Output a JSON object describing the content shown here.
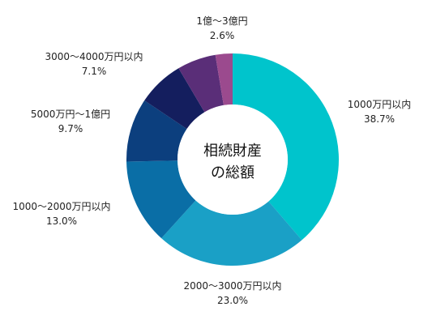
{
  "chart_data": {
    "type": "pie",
    "variant": "donut",
    "center_label": [
      "相続財産",
      "の総額"
    ],
    "slices": [
      {
        "label": "1000万円以内",
        "value": 38.7,
        "value_label": "38.7%",
        "color": "#00C4CC"
      },
      {
        "label": "2000〜3000万円以内",
        "value": 23.0,
        "value_label": "23.0%",
        "color": "#1AA0C6"
      },
      {
        "label": "1000〜2000万円以内",
        "value": 13.0,
        "value_label": "13.0%",
        "color": "#0A6EA6"
      },
      {
        "label": "5000万円〜1億円",
        "value": 9.7,
        "value_label": "9.7%",
        "color": "#0C3F7E"
      },
      {
        "label": "3000〜4000万円以内",
        "value": 7.1,
        "value_label": "7.1%",
        "color": "#141E5E"
      },
      {
        "label": "1億〜3億円",
        "value": 2.6,
        "value_label": "2.6%",
        "color": "#9B4A8E"
      }
    ],
    "extra_slices": [
      {
        "value": 5.9,
        "color": "#5A2E78"
      }
    ],
    "legend": "none"
  }
}
